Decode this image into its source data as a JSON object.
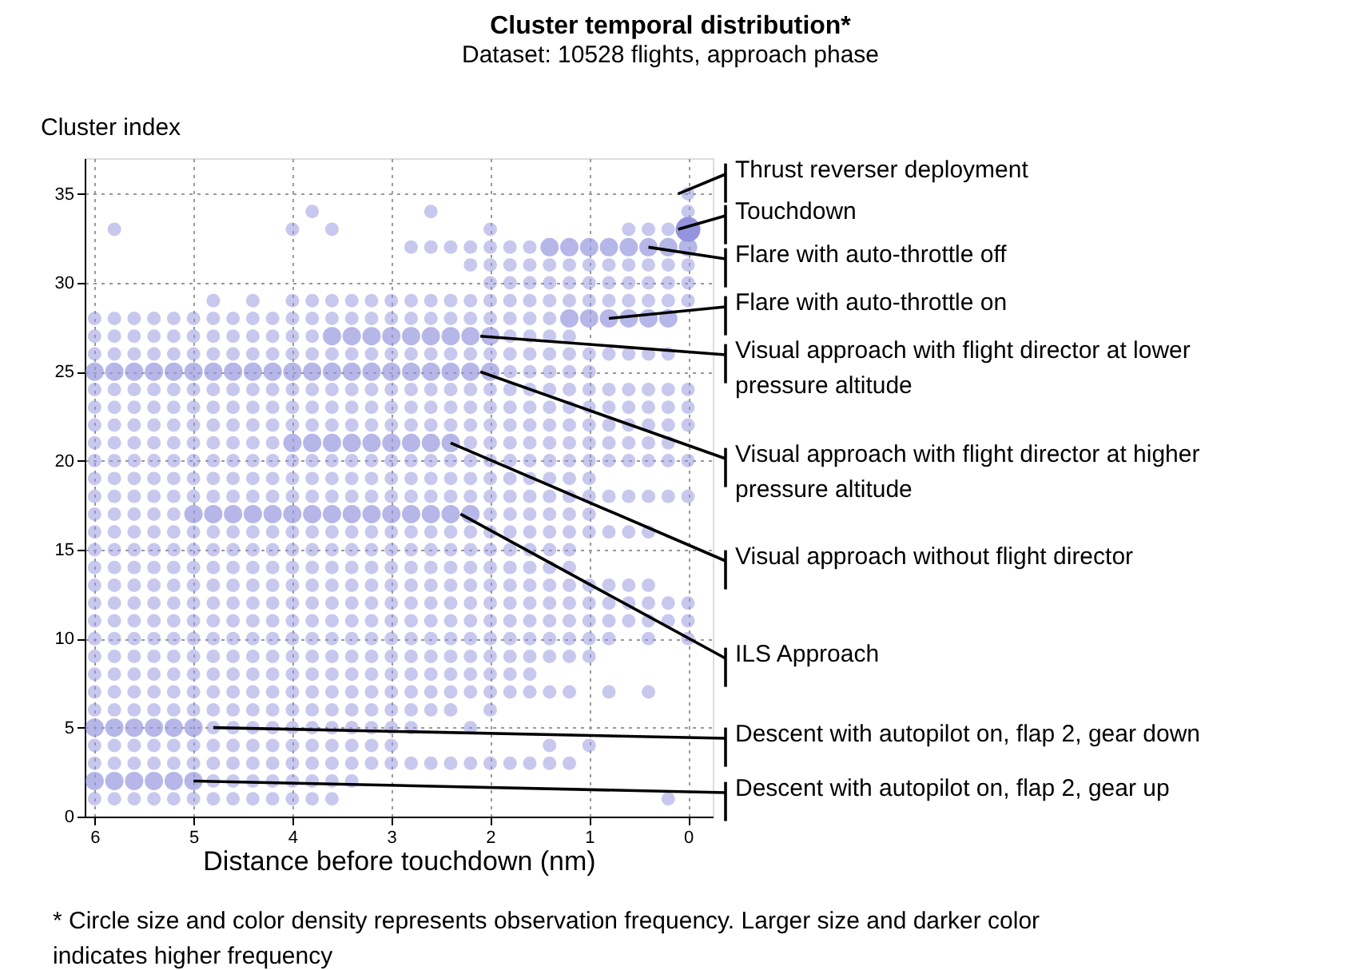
{
  "chart_data": {
    "type": "bubble",
    "title": "Cluster temporal distribution*",
    "subtitle": "Dataset: 10528 flights, approach phase",
    "xlabel": "Distance before touchdown (nm)",
    "ylabel": "Cluster index",
    "xlim": [
      6.1,
      -0.25
    ],
    "xticks": [
      6,
      5,
      4,
      3,
      2,
      1,
      0
    ],
    "ylim": [
      0,
      37
    ],
    "yticks": [
      0,
      5,
      10,
      15,
      20,
      25,
      30,
      35
    ],
    "grid": true,
    "x": [
      6,
      5.8,
      5.6,
      5.4,
      5.2,
      5,
      4.8,
      4.6,
      4.4,
      4.2,
      4,
      3.8,
      3.6,
      3.4,
      3.2,
      3,
      2.8,
      2.6,
      2.4,
      2.2,
      2,
      1.8,
      1.6,
      1.4,
      1.2,
      1,
      0.8,
      0.6,
      0.4,
      0.2,
      0
    ],
    "series": [
      {
        "color": "#9494de",
        "x": [
          6,
          5.8,
          5.6,
          5.4,
          5.2,
          5,
          4.8,
          4.6,
          4.4,
          4.2,
          4,
          3.8,
          3.6,
          0.2
        ],
        "values": [
          1,
          1,
          1,
          1,
          1,
          1,
          1,
          1,
          1,
          1,
          1,
          1,
          1,
          1
        ],
        "sizes": [
          0.3,
          0.3,
          0.3,
          0.3,
          0.3,
          0.3,
          0.3,
          0.3,
          0.3,
          0.3,
          0.3,
          0.3,
          0.3,
          0.3
        ]
      },
      {
        "color": "#9494de",
        "x": [
          6,
          5.8,
          5.6,
          5.4,
          5.2,
          5,
          4.8,
          4.6,
          4.4,
          4.2,
          4,
          3.8,
          3.6,
          3.4
        ],
        "values": [
          2,
          2,
          2,
          2,
          2,
          2,
          2,
          2,
          2,
          2,
          2,
          2,
          2,
          2
        ],
        "sizes": [
          0.55,
          0.55,
          0.55,
          0.55,
          0.55,
          0.55,
          0.3,
          0.3,
          0.3,
          0.3,
          0.3,
          0.3,
          0.3,
          0.3
        ]
      },
      {
        "color": "#9494de",
        "x": [
          6,
          5.8,
          5.6,
          5.4,
          5.2,
          5,
          4.8,
          4.6,
          4.4,
          4.2,
          4,
          3.8,
          3.6,
          3.4,
          3.2,
          3,
          2.8,
          2.6,
          2.4,
          2.2,
          2,
          1.8,
          1.6,
          1.4,
          1.2
        ],
        "values": [
          3,
          3,
          3,
          3,
          3,
          3,
          3,
          3,
          3,
          3,
          3,
          3,
          3,
          3,
          3,
          3,
          3,
          3,
          3,
          3,
          3,
          3,
          3,
          3,
          3
        ],
        "sizes": [
          0.3,
          0.3,
          0.3,
          0.3,
          0.3,
          0.3,
          0.3,
          0.3,
          0.3,
          0.3,
          0.3,
          0.3,
          0.3,
          0.3,
          0.3,
          0.3,
          0.3,
          0.3,
          0.3,
          0.3,
          0.3,
          0.3,
          0.3,
          0.3,
          0.3
        ]
      },
      {
        "color": "#9494de",
        "x": [
          6,
          5.8,
          5.6,
          5.4,
          5.2,
          5,
          4.8,
          4.6,
          4.4,
          4.2,
          4,
          3.8,
          3.6,
          3.4,
          3.2,
          3,
          1.4,
          1
        ],
        "values": [
          4,
          4,
          4,
          4,
          4,
          4,
          4,
          4,
          4,
          4,
          4,
          4,
          4,
          4,
          4,
          4,
          4,
          4
        ],
        "sizes": [
          0.3,
          0.3,
          0.3,
          0.3,
          0.3,
          0.3,
          0.3,
          0.3,
          0.3,
          0.3,
          0.3,
          0.3,
          0.3,
          0.3,
          0.3,
          0.3,
          0.3,
          0.3
        ]
      },
      {
        "color": "#9494de",
        "x": [
          6,
          5.8,
          5.6,
          5.4,
          5.2,
          5,
          4.8,
          4.6,
          4.4,
          4.2,
          4,
          3.8,
          3.6,
          3.4,
          3.2,
          3,
          2.8,
          2.2
        ],
        "values": [
          5,
          5,
          5,
          5,
          5,
          5,
          5,
          5,
          5,
          5,
          5,
          5,
          5,
          5,
          5,
          5,
          5,
          5
        ],
        "sizes": [
          0.55,
          0.55,
          0.55,
          0.55,
          0.55,
          0.55,
          0.3,
          0.3,
          0.3,
          0.3,
          0.3,
          0.3,
          0.3,
          0.3,
          0.3,
          0.3,
          0.3,
          0.3
        ]
      },
      {
        "color": "#9494de",
        "x": [
          6,
          5.8,
          5.6,
          5.4,
          5.2,
          5,
          4.8,
          4.6,
          4.4,
          4.2,
          4,
          3.8,
          3.6,
          3.4,
          3.2,
          3,
          2.8,
          2.6,
          2.4,
          2
        ],
        "values": [
          6,
          6,
          6,
          6,
          6,
          6,
          6,
          6,
          6,
          6,
          6,
          6,
          6,
          6,
          6,
          6,
          6,
          6,
          6,
          6
        ],
        "sizes": [
          0.3,
          0.3,
          0.3,
          0.3,
          0.3,
          0.3,
          0.3,
          0.3,
          0.3,
          0.3,
          0.3,
          0.3,
          0.3,
          0.3,
          0.3,
          0.3,
          0.3,
          0.3,
          0.3,
          0.3
        ]
      },
      {
        "color": "#9494de",
        "x": [
          6,
          5.8,
          5.6,
          5.4,
          5.2,
          5,
          4.8,
          4.6,
          4.4,
          4.2,
          4,
          3.8,
          3.6,
          3.4,
          3.2,
          3,
          2.8,
          2.6,
          2.4,
          2.2,
          2,
          1.8,
          1.6,
          1.4,
          1.2,
          0.8,
          0.4
        ],
        "values": [
          7,
          7,
          7,
          7,
          7,
          7,
          7,
          7,
          7,
          7,
          7,
          7,
          7,
          7,
          7,
          7,
          7,
          7,
          7,
          7,
          7,
          7,
          7,
          7,
          7,
          7,
          7
        ],
        "sizes": [
          0.3,
          0.3,
          0.3,
          0.3,
          0.3,
          0.3,
          0.3,
          0.3,
          0.3,
          0.3,
          0.3,
          0.3,
          0.3,
          0.3,
          0.3,
          0.3,
          0.3,
          0.3,
          0.3,
          0.3,
          0.3,
          0.3,
          0.3,
          0.3,
          0.3,
          0.3,
          0.3
        ]
      },
      {
        "color": "#9494de",
        "x": [
          6,
          5.8,
          5.6,
          5.4,
          5.2,
          5,
          4.8,
          4.6,
          4.4,
          4.2,
          4,
          3.8,
          3.6,
          3.4,
          3.2,
          3,
          2.8,
          2.6,
          2.4,
          2.2,
          2,
          1.8,
          1.6
        ],
        "values": [
          8,
          8,
          8,
          8,
          8,
          8,
          8,
          8,
          8,
          8,
          8,
          8,
          8,
          8,
          8,
          8,
          8,
          8,
          8,
          8,
          8,
          8,
          8
        ],
        "sizes": [
          0.3,
          0.3,
          0.3,
          0.3,
          0.3,
          0.3,
          0.3,
          0.3,
          0.3,
          0.3,
          0.3,
          0.3,
          0.3,
          0.3,
          0.3,
          0.3,
          0.3,
          0.3,
          0.3,
          0.3,
          0.3,
          0.3,
          0.3
        ]
      },
      {
        "color": "#9494de",
        "x": [
          6,
          5.8,
          5.6,
          5.4,
          5.2,
          5,
          4.8,
          4.6,
          4.4,
          4.2,
          4,
          3.8,
          3.6,
          3.4,
          3.2,
          3,
          2.8,
          2.6,
          2.4,
          2.2,
          2,
          1.8,
          1.6,
          1.4,
          1.2,
          1
        ],
        "values": [
          9,
          9,
          9,
          9,
          9,
          9,
          9,
          9,
          9,
          9,
          9,
          9,
          9,
          9,
          9,
          9,
          9,
          9,
          9,
          9,
          9,
          9,
          9,
          9,
          9,
          9
        ],
        "sizes": [
          0.3,
          0.3,
          0.3,
          0.3,
          0.3,
          0.3,
          0.3,
          0.3,
          0.3,
          0.3,
          0.3,
          0.3,
          0.3,
          0.3,
          0.3,
          0.3,
          0.3,
          0.3,
          0.3,
          0.3,
          0.3,
          0.3,
          0.3,
          0.3,
          0.3,
          0.3
        ]
      },
      {
        "color": "#9494de",
        "x": [
          6,
          5.8,
          5.6,
          5.4,
          5.2,
          5,
          4.8,
          4.6,
          4.4,
          4.2,
          4,
          3.8,
          3.6,
          3.4,
          3.2,
          3,
          2.8,
          2.6,
          2.4,
          2.2,
          2,
          1.8,
          1.6,
          1.4,
          1.2,
          1,
          0.8,
          0.4,
          0
        ],
        "values": [
          10,
          10,
          10,
          10,
          10,
          10,
          10,
          10,
          10,
          10,
          10,
          10,
          10,
          10,
          10,
          10,
          10,
          10,
          10,
          10,
          10,
          10,
          10,
          10,
          10,
          10,
          10,
          10,
          10
        ],
        "sizes": [
          0.3,
          0.3,
          0.3,
          0.3,
          0.3,
          0.3,
          0.3,
          0.3,
          0.3,
          0.3,
          0.3,
          0.3,
          0.3,
          0.3,
          0.3,
          0.3,
          0.3,
          0.3,
          0.3,
          0.3,
          0.3,
          0.3,
          0.3,
          0.3,
          0.3,
          0.3,
          0.3,
          0.3,
          0.3
        ]
      },
      {
        "color": "#9494de",
        "values": [
          11,
          11,
          11,
          11,
          11,
          11,
          11,
          11,
          11,
          11,
          11,
          11,
          11,
          11,
          11,
          11,
          11,
          11,
          11,
          11,
          11,
          11,
          11,
          11,
          11,
          11,
          11,
          11,
          11,
          11,
          11
        ],
        "sizes": [
          0.3,
          0.3,
          0.3,
          0.3,
          0.3,
          0.3,
          0.3,
          0.3,
          0.3,
          0.3,
          0.3,
          0.3,
          0.3,
          0.3,
          0.3,
          0.3,
          0.3,
          0.3,
          0.3,
          0.3,
          0.3,
          0.3,
          0.3,
          0.3,
          0.3,
          0.3,
          0.3,
          0.3,
          0.3,
          0.3,
          0.3
        ]
      },
      {
        "color": "#9494de",
        "values": [
          12,
          12,
          12,
          12,
          12,
          12,
          12,
          12,
          12,
          12,
          12,
          12,
          12,
          12,
          12,
          12,
          12,
          12,
          12,
          12,
          12,
          12,
          12,
          12,
          12,
          12,
          12,
          12,
          12,
          12,
          12
        ],
        "sizes": [
          0.3,
          0.3,
          0.3,
          0.3,
          0.3,
          0.3,
          0.3,
          0.3,
          0.3,
          0.3,
          0.3,
          0.3,
          0.3,
          0.3,
          0.3,
          0.3,
          0.3,
          0.3,
          0.3,
          0.3,
          0.3,
          0.3,
          0.3,
          0.3,
          0.3,
          0.3,
          0.3,
          0.3,
          0.3,
          0.3,
          0.3
        ]
      },
      {
        "color": "#9494de",
        "values": [
          13,
          13,
          13,
          13,
          13,
          13,
          13,
          13,
          13,
          13,
          13,
          13,
          13,
          13,
          13,
          13,
          13,
          13,
          13,
          13,
          13,
          13,
          13,
          13,
          13,
          13,
          13,
          13,
          13,
          null,
          null
        ],
        "sizes": [
          0.3,
          0.3,
          0.3,
          0.3,
          0.3,
          0.3,
          0.3,
          0.3,
          0.3,
          0.3,
          0.3,
          0.3,
          0.3,
          0.3,
          0.3,
          0.3,
          0.3,
          0.3,
          0.3,
          0.3,
          0.3,
          0.3,
          0.3,
          0.3,
          0.3,
          0.3,
          0.3,
          0.3,
          0.3,
          null,
          null
        ]
      },
      {
        "color": "#9494de",
        "values": [
          14,
          14,
          14,
          14,
          14,
          14,
          14,
          14,
          14,
          14,
          14,
          14,
          14,
          14,
          14,
          14,
          14,
          14,
          14,
          14,
          14,
          14,
          14,
          14,
          14,
          null,
          null,
          null,
          null,
          null,
          null
        ],
        "sizes": [
          0.3,
          0.3,
          0.3,
          0.3,
          0.3,
          0.3,
          0.3,
          0.3,
          0.3,
          0.3,
          0.3,
          0.3,
          0.3,
          0.3,
          0.3,
          0.3,
          0.3,
          0.3,
          0.3,
          0.3,
          0.3,
          0.3,
          0.3,
          0.3,
          0.3,
          null,
          null,
          null,
          null,
          null,
          null
        ]
      },
      {
        "color": "#9494de",
        "values": [
          15,
          15,
          15,
          15,
          15,
          15,
          15,
          15,
          15,
          15,
          15,
          15,
          15,
          15,
          15,
          15,
          15,
          15,
          15,
          15,
          15,
          15,
          15,
          15,
          15,
          null,
          null,
          null,
          null,
          null,
          null
        ],
        "sizes": [
          0.3,
          0.3,
          0.3,
          0.3,
          0.3,
          0.3,
          0.3,
          0.3,
          0.3,
          0.3,
          0.3,
          0.3,
          0.3,
          0.3,
          0.3,
          0.3,
          0.3,
          0.3,
          0.3,
          0.3,
          0.3,
          0.3,
          0.3,
          0.3,
          0.3,
          null,
          null,
          null,
          null,
          null,
          null
        ]
      },
      {
        "color": "#9494de",
        "values": [
          16,
          16,
          16,
          16,
          16,
          16,
          16,
          16,
          16,
          16,
          16,
          16,
          16,
          16,
          16,
          16,
          16,
          16,
          16,
          16,
          16,
          16,
          16,
          16,
          16,
          16,
          16,
          16,
          16,
          null,
          null
        ],
        "sizes": [
          0.3,
          0.3,
          0.3,
          0.3,
          0.3,
          0.3,
          0.3,
          0.3,
          0.3,
          0.3,
          0.3,
          0.3,
          0.3,
          0.3,
          0.3,
          0.3,
          0.3,
          0.3,
          0.3,
          0.3,
          0.3,
          0.3,
          0.3,
          0.3,
          0.3,
          0.3,
          0.3,
          0.3,
          0.3,
          null,
          null
        ]
      },
      {
        "color": "#9494de",
        "values": [
          17,
          17,
          17,
          17,
          17,
          17,
          17,
          17,
          17,
          17,
          17,
          17,
          17,
          17,
          17,
          17,
          17,
          17,
          17,
          17,
          17,
          17,
          17,
          17,
          17,
          17,
          null,
          null,
          null,
          null,
          null
        ],
        "sizes": [
          0.3,
          0.3,
          0.3,
          0.3,
          0.3,
          0.55,
          0.55,
          0.55,
          0.55,
          0.55,
          0.55,
          0.55,
          0.55,
          0.55,
          0.55,
          0.55,
          0.55,
          0.55,
          0.55,
          0.55,
          0.3,
          0.3,
          0.3,
          0.3,
          0.3,
          0.3,
          null,
          null,
          null,
          null,
          null
        ]
      },
      {
        "color": "#9494de",
        "values": [
          18,
          18,
          18,
          18,
          18,
          18,
          18,
          18,
          18,
          18,
          18,
          18,
          18,
          18,
          18,
          18,
          18,
          18,
          18,
          18,
          18,
          18,
          18,
          18,
          18,
          18,
          18,
          18,
          18,
          18,
          18
        ],
        "sizes": [
          0.3,
          0.3,
          0.3,
          0.3,
          0.3,
          0.3,
          0.3,
          0.3,
          0.3,
          0.3,
          0.3,
          0.3,
          0.3,
          0.3,
          0.3,
          0.3,
          0.3,
          0.3,
          0.3,
          0.3,
          0.3,
          0.3,
          0.3,
          0.3,
          0.3,
          0.3,
          0.3,
          0.3,
          0.3,
          0.3,
          0.3
        ]
      },
      {
        "color": "#9494de",
        "values": [
          19,
          19,
          19,
          19,
          19,
          19,
          19,
          19,
          19,
          19,
          19,
          19,
          19,
          19,
          19,
          19,
          19,
          19,
          19,
          19,
          19,
          19,
          19,
          19,
          19,
          19,
          null,
          null,
          null,
          null,
          null
        ],
        "sizes": [
          0.3,
          0.3,
          0.3,
          0.3,
          0.3,
          0.3,
          0.3,
          0.3,
          0.3,
          0.3,
          0.3,
          0.3,
          0.3,
          0.3,
          0.3,
          0.3,
          0.3,
          0.3,
          0.3,
          0.3,
          0.3,
          0.3,
          0.3,
          0.3,
          0.3,
          0.3,
          null,
          null,
          null,
          null,
          null
        ]
      },
      {
        "color": "#9494de",
        "values": [
          20,
          20,
          20,
          20,
          20,
          20,
          20,
          20,
          20,
          20,
          20,
          20,
          20,
          20,
          20,
          20,
          20,
          20,
          20,
          20,
          20,
          20,
          20,
          20,
          20,
          20,
          20,
          20,
          20,
          20,
          20
        ],
        "sizes": [
          0.3,
          0.3,
          0.3,
          0.3,
          0.3,
          0.3,
          0.3,
          0.3,
          0.3,
          0.3,
          0.3,
          0.3,
          0.3,
          0.3,
          0.3,
          0.3,
          0.3,
          0.3,
          0.3,
          0.3,
          0.3,
          0.3,
          0.3,
          0.3,
          0.3,
          0.3,
          0.3,
          0.3,
          0.3,
          0.3,
          0.3
        ]
      },
      {
        "color": "#9494de",
        "values": [
          21,
          21,
          21,
          21,
          21,
          21,
          21,
          21,
          21,
          21,
          21,
          21,
          21,
          21,
          21,
          21,
          21,
          21,
          21,
          21,
          21,
          21,
          21,
          21,
          21,
          21,
          21,
          21,
          21,
          21,
          null
        ],
        "sizes": [
          0.3,
          0.3,
          0.3,
          0.3,
          0.3,
          0.3,
          0.3,
          0.3,
          0.3,
          0.3,
          0.55,
          0.55,
          0.55,
          0.55,
          0.55,
          0.55,
          0.55,
          0.55,
          0.55,
          0.3,
          0.3,
          0.3,
          0.3,
          0.3,
          0.3,
          0.3,
          0.3,
          0.3,
          0.3,
          0.3,
          null
        ]
      },
      {
        "color": "#9494de",
        "values": [
          22,
          22,
          22,
          22,
          22,
          22,
          22,
          22,
          22,
          22,
          22,
          22,
          22,
          22,
          22,
          22,
          22,
          22,
          22,
          22,
          22,
          22,
          22,
          22,
          22,
          22,
          22,
          22,
          22,
          22,
          22
        ],
        "sizes": [
          0.3,
          0.3,
          0.3,
          0.3,
          0.3,
          0.3,
          0.3,
          0.3,
          0.3,
          0.3,
          0.3,
          0.3,
          0.3,
          0.3,
          0.3,
          0.3,
          0.3,
          0.3,
          0.3,
          0.3,
          0.3,
          0.3,
          0.3,
          0.3,
          0.3,
          0.3,
          0.3,
          0.3,
          0.3,
          0.3,
          0.3
        ]
      },
      {
        "color": "#9494de",
        "values": [
          23,
          23,
          23,
          23,
          23,
          23,
          23,
          23,
          23,
          23,
          23,
          23,
          23,
          23,
          23,
          23,
          23,
          23,
          23,
          23,
          23,
          23,
          23,
          23,
          23,
          23,
          23,
          23,
          23,
          23,
          23
        ],
        "sizes": [
          0.3,
          0.3,
          0.3,
          0.3,
          0.3,
          0.3,
          0.3,
          0.3,
          0.3,
          0.3,
          0.3,
          0.3,
          0.3,
          0.3,
          0.3,
          0.3,
          0.3,
          0.3,
          0.3,
          0.3,
          0.3,
          0.3,
          0.3,
          0.3,
          0.3,
          0.3,
          0.3,
          0.3,
          0.3,
          0.3,
          0.3
        ]
      },
      {
        "color": "#9494de",
        "values": [
          24,
          24,
          24,
          24,
          24,
          24,
          24,
          24,
          24,
          24,
          24,
          24,
          24,
          24,
          24,
          24,
          24,
          24,
          24,
          24,
          24,
          24,
          24,
          24,
          24,
          24,
          24,
          24,
          24,
          24,
          24
        ],
        "sizes": [
          0.3,
          0.3,
          0.3,
          0.3,
          0.3,
          0.3,
          0.3,
          0.3,
          0.3,
          0.3,
          0.3,
          0.3,
          0.3,
          0.3,
          0.3,
          0.3,
          0.3,
          0.3,
          0.3,
          0.3,
          0.3,
          0.3,
          0.3,
          0.3,
          0.3,
          0.3,
          0.3,
          0.3,
          0.3,
          0.3,
          0.3
        ]
      },
      {
        "color": "#9494de",
        "values": [
          25,
          25,
          25,
          25,
          25,
          25,
          25,
          25,
          25,
          25,
          25,
          25,
          25,
          25,
          25,
          25,
          25,
          25,
          25,
          25,
          25,
          25,
          25,
          25,
          25,
          25,
          null,
          null,
          null,
          null,
          null
        ],
        "sizes": [
          0.55,
          0.55,
          0.55,
          0.55,
          0.55,
          0.55,
          0.55,
          0.55,
          0.55,
          0.55,
          0.55,
          0.55,
          0.55,
          0.55,
          0.55,
          0.55,
          0.55,
          0.55,
          0.55,
          0.55,
          0.55,
          0.3,
          0.3,
          0.3,
          0.3,
          0.3,
          null,
          null,
          null,
          null,
          null
        ]
      },
      {
        "color": "#9494de",
        "values": [
          26,
          26,
          26,
          26,
          26,
          26,
          26,
          26,
          26,
          26,
          26,
          26,
          26,
          26,
          26,
          26,
          26,
          26,
          26,
          26,
          26,
          26,
          26,
          26,
          26,
          26,
          26,
          26,
          26,
          26,
          null
        ],
        "sizes": [
          0.3,
          0.3,
          0.3,
          0.3,
          0.3,
          0.3,
          0.3,
          0.3,
          0.3,
          0.3,
          0.3,
          0.3,
          0.3,
          0.3,
          0.3,
          0.3,
          0.3,
          0.3,
          0.3,
          0.3,
          0.3,
          0.3,
          0.3,
          0.3,
          0.3,
          0.3,
          0.3,
          0.3,
          0.3,
          0.3,
          null
        ]
      },
      {
        "color": "#9494de",
        "values": [
          27,
          27,
          27,
          27,
          27,
          27,
          27,
          27,
          27,
          27,
          27,
          27,
          27,
          27,
          27,
          27,
          27,
          27,
          27,
          27,
          27,
          27,
          27,
          27,
          27,
          null,
          null,
          null,
          null,
          null,
          null
        ],
        "sizes": [
          0.3,
          0.3,
          0.3,
          0.3,
          0.3,
          0.3,
          0.3,
          0.3,
          0.3,
          0.3,
          0.3,
          0.3,
          0.55,
          0.55,
          0.55,
          0.55,
          0.55,
          0.55,
          0.55,
          0.55,
          0.55,
          0.3,
          0.3,
          0.3,
          0.3,
          null,
          null,
          null,
          null,
          null,
          null
        ]
      },
      {
        "color": "#9494de",
        "values": [
          28,
          28,
          28,
          28,
          28,
          28,
          28,
          28,
          28,
          28,
          28,
          28,
          28,
          28,
          28,
          28,
          28,
          28,
          28,
          28,
          28,
          28,
          28,
          28,
          28,
          28,
          28,
          28,
          28,
          28,
          null
        ],
        "sizes": [
          0.3,
          0.3,
          0.3,
          0.3,
          0.3,
          0.3,
          0.3,
          0.3,
          0.3,
          0.3,
          0.3,
          0.3,
          0.3,
          0.3,
          0.3,
          0.3,
          0.3,
          0.3,
          0.3,
          0.3,
          0.3,
          0.3,
          0.3,
          0.3,
          0.55,
          0.55,
          0.55,
          0.55,
          0.55,
          0.55,
          null
        ]
      },
      {
        "color": "#9494de",
        "x": [
          4.8,
          4.4,
          4,
          3.8,
          3.6,
          3.4,
          3.2,
          3,
          2.8,
          2.6,
          2.4,
          2.2,
          2,
          1.8,
          1.6,
          1.4,
          1.2,
          1,
          0.8,
          0.6,
          0.4,
          0.2,
          0
        ],
        "values": [
          29,
          29,
          29,
          29,
          29,
          29,
          29,
          29,
          29,
          29,
          29,
          29,
          29,
          29,
          29,
          29,
          29,
          29,
          29,
          29,
          29,
          29,
          29
        ],
        "sizes": [
          0.3,
          0.3,
          0.3,
          0.3,
          0.3,
          0.3,
          0.3,
          0.3,
          0.3,
          0.3,
          0.3,
          0.3,
          0.3,
          0.3,
          0.3,
          0.3,
          0.3,
          0.3,
          0.3,
          0.3,
          0.3,
          0.3,
          0.3
        ]
      },
      {
        "color": "#9494de",
        "x": [
          2,
          1.8,
          1.6,
          1.4,
          1.2,
          1,
          0.8,
          0.6,
          0.4,
          0.2,
          0
        ],
        "values": [
          30,
          30,
          30,
          30,
          30,
          30,
          30,
          30,
          30,
          30,
          30
        ],
        "sizes": [
          0.3,
          0.3,
          0.3,
          0.3,
          0.3,
          0.3,
          0.3,
          0.3,
          0.3,
          0.3,
          0.3
        ]
      },
      {
        "color": "#9494de",
        "x": [
          2.2,
          2,
          1.8,
          1.6,
          1.4,
          1.2,
          1,
          0.8,
          0.6,
          0.4,
          0.2,
          0
        ],
        "values": [
          31,
          31,
          31,
          31,
          31,
          31,
          31,
          31,
          31,
          31,
          31,
          31
        ],
        "sizes": [
          0.3,
          0.3,
          0.3,
          0.3,
          0.3,
          0.3,
          0.3,
          0.3,
          0.3,
          0.3,
          0.3,
          0.3
        ]
      },
      {
        "color": "#9494de",
        "x": [
          2.8,
          2.6,
          2.4,
          2.2,
          2,
          1.8,
          1.6,
          1.4,
          1.2,
          1,
          0.8,
          0.6,
          0.4,
          0.2,
          0
        ],
        "values": [
          32,
          32,
          32,
          32,
          32,
          32,
          32,
          32,
          32,
          32,
          32,
          32,
          32,
          32,
          32
        ],
        "sizes": [
          0.3,
          0.3,
          0.3,
          0.3,
          0.3,
          0.3,
          0.3,
          0.55,
          0.55,
          0.55,
          0.55,
          0.55,
          0.55,
          0.55,
          0.55
        ]
      },
      {
        "color": "#9494de",
        "x": [
          5.8,
          4,
          3.6,
          2,
          0.6,
          0.4,
          0.2,
          0
        ],
        "values": [
          33,
          33,
          33,
          33,
          33,
          33,
          33,
          33
        ],
        "sizes": [
          0.3,
          0.3,
          0.3,
          0.3,
          0.3,
          0.3,
          0.3,
          1
        ]
      },
      {
        "color": "#9494de",
        "x": [
          3.8,
          2.6,
          0
        ],
        "values": [
          34,
          34,
          34
        ],
        "sizes": [
          0.3,
          0.3,
          0.3
        ]
      },
      {
        "color": "#9494de",
        "x": [
          0
        ],
        "values": [
          35
        ],
        "sizes": [
          0.3
        ]
      }
    ],
    "annotations": [
      {
        "text": "Thrust reverser deployment",
        "x": 0.1,
        "y": 35
      },
      {
        "text": "Touchdown",
        "x": 0.1,
        "y": 33
      },
      {
        "text": "Flare with auto-throttle off",
        "x": 0.4,
        "y": 32
      },
      {
        "text": "Flare with auto-throttle on",
        "x": 0.8,
        "y": 28
      },
      {
        "text": "Visual approach with flight director at lower pressure altitude",
        "x": 2.1,
        "y": 27
      },
      {
        "text": "Visual approach with flight director at higher pressure altitude",
        "x": 2.1,
        "y": 25
      },
      {
        "text": "Visual approach without flight director",
        "x": 2.4,
        "y": 21
      },
      {
        "text": "ILS Approach",
        "x": 2.3,
        "y": 17
      },
      {
        "text": "Descent with autopilot on, flap 2, gear down",
        "x": 4.8,
        "y": 5
      },
      {
        "text": "Descent with autopilot on, flap 2, gear up",
        "x": 5.0,
        "y": 2
      },
      "* Circle size and color density represents observation frequency. Larger size and darker color indicates higher frequency"
    ]
  }
}
